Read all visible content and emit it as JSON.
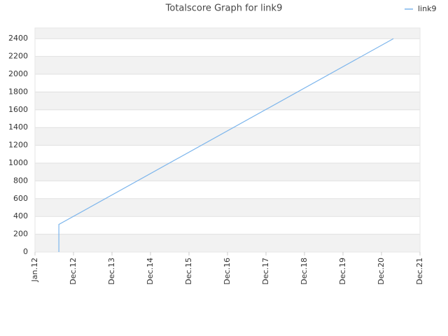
{
  "chart_data": {
    "type": "line",
    "title": "Totalscore Graph for link9",
    "x": [
      0.62,
      0.62,
      9.31
    ],
    "series": [
      {
        "name": "link9",
        "color": "#7cb5ec",
        "values": [
          0,
          310,
          2400
        ]
      }
    ],
    "xlim": [
      0,
      10
    ],
    "xticks": [
      {
        "value": 0,
        "label": "Jan.12"
      },
      {
        "value": 1,
        "label": "Dec.12"
      },
      {
        "value": 2,
        "label": "Dec.13"
      },
      {
        "value": 3,
        "label": "Dec.14"
      },
      {
        "value": 4,
        "label": "Dec.15"
      },
      {
        "value": 5,
        "label": "Dec.16"
      },
      {
        "value": 6,
        "label": "Dec.17"
      },
      {
        "value": 7,
        "label": "Dec.18"
      },
      {
        "value": 8,
        "label": "Dec.19"
      },
      {
        "value": 9,
        "label": "Dec.20"
      },
      {
        "value": 10,
        "label": "Dec.21"
      }
    ],
    "ylim": [
      0,
      2520
    ],
    "yticks": [
      0,
      200,
      400,
      600,
      800,
      1000,
      1200,
      1400,
      1600,
      1800,
      2000,
      2200,
      2400
    ],
    "grid": true,
    "legend": "top-right"
  }
}
